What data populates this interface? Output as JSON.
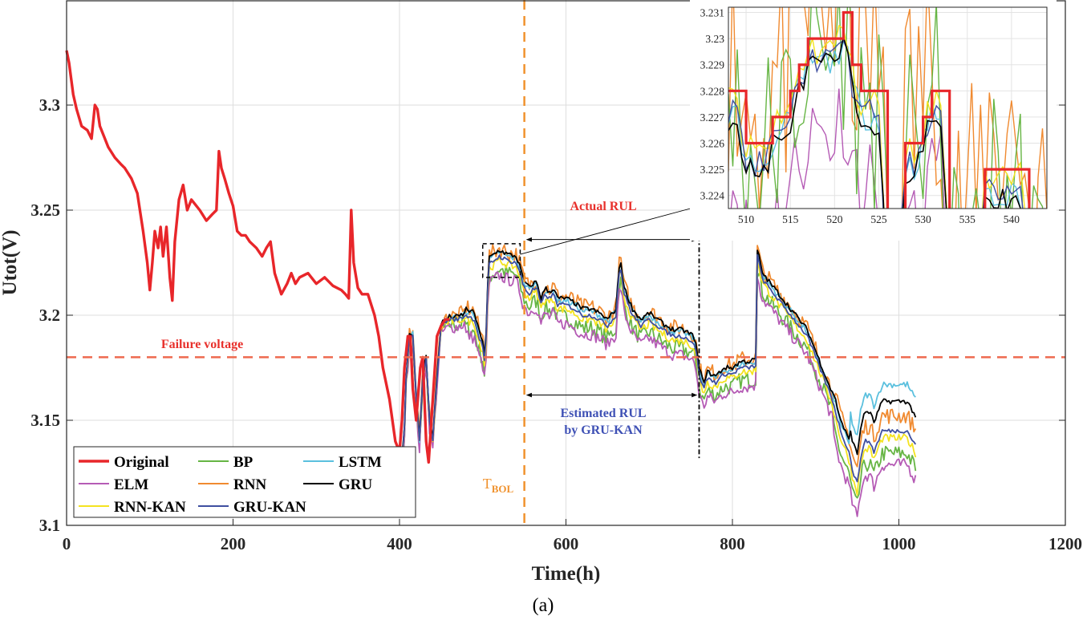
{
  "chart_data": {
    "type": "line",
    "title": "",
    "xlabel": "Time(h)",
    "ylabel": "Utot(V)",
    "xlim": [
      0,
      1200
    ],
    "ylim": [
      3.1,
      3.35
    ],
    "xticks": [
      "0",
      "200",
      "400",
      "600",
      "800",
      "1000",
      "1200"
    ],
    "yticks": [
      "3.1",
      "3.15",
      "3.2",
      "3.25",
      "3.3"
    ],
    "grid": true,
    "legend_position": "bottom-left",
    "failure_voltage": 3.18,
    "failure_label": "Failure voltage",
    "t_bol": 550,
    "t_bol_label": "T",
    "t_bol_sub": "BOL",
    "eol": 760,
    "actual_rul_label": "Actual RUL",
    "estimated_rul_label_line1": "Estimated RUL",
    "estimated_rul_label_line2": "by GRU-KAN",
    "zoom_box": {
      "x": [
        500,
        545
      ],
      "y": [
        3.218,
        3.234
      ]
    },
    "original": {
      "name": "Original",
      "color": "#e8262a",
      "x": [
        0,
        3,
        8,
        12,
        18,
        25,
        30,
        34,
        37,
        40,
        45,
        50,
        58,
        65,
        70,
        78,
        85,
        92,
        97,
        100,
        103,
        106,
        110,
        113,
        116,
        120,
        124,
        127,
        130,
        135,
        140,
        145,
        150,
        160,
        168,
        175,
        180,
        183,
        186,
        190,
        195,
        200,
        205,
        210,
        215,
        220,
        228,
        235,
        240,
        245,
        250,
        258,
        265,
        270,
        275,
        280,
        290,
        300,
        310,
        320,
        330,
        335,
        339,
        342,
        345,
        350,
        355,
        362,
        370,
        375,
        380,
        388,
        395,
        400,
        403,
        406,
        410,
        413,
        416,
        420,
        425,
        428,
        432,
        435,
        440,
        445,
        450,
        455,
        460
      ],
      "y": [
        3.326,
        3.32,
        3.305,
        3.298,
        3.29,
        3.288,
        3.284,
        3.3,
        3.298,
        3.29,
        3.285,
        3.28,
        3.275,
        3.272,
        3.27,
        3.265,
        3.258,
        3.24,
        3.225,
        3.212,
        3.225,
        3.24,
        3.232,
        3.242,
        3.228,
        3.242,
        3.218,
        3.207,
        3.235,
        3.255,
        3.262,
        3.25,
        3.255,
        3.25,
        3.245,
        3.248,
        3.25,
        3.278,
        3.27,
        3.265,
        3.258,
        3.252,
        3.24,
        3.238,
        3.238,
        3.235,
        3.232,
        3.228,
        3.232,
        3.235,
        3.22,
        3.21,
        3.215,
        3.22,
        3.215,
        3.218,
        3.22,
        3.215,
        3.218,
        3.214,
        3.212,
        3.21,
        3.208,
        3.25,
        3.225,
        3.213,
        3.21,
        3.21,
        3.2,
        3.19,
        3.175,
        3.16,
        3.14,
        3.135,
        3.15,
        3.175,
        3.19,
        3.19,
        3.165,
        3.15,
        3.175,
        3.18,
        3.14,
        3.13,
        3.16,
        3.19,
        3.195,
        3.198,
        3.198
      ]
    },
    "series": [
      {
        "name": "BP",
        "color": "#66b544",
        "offset": -0.006,
        "noise": 0.004
      },
      {
        "name": "ELM",
        "color": "#b55bb5",
        "offset": -0.009,
        "noise": 0.003
      },
      {
        "name": "RNN",
        "color": "#f08a30",
        "offset": 0.004,
        "noise": 0.004
      },
      {
        "name": "LSTM",
        "color": "#5bc0de",
        "offset": 0.002,
        "noise": 0.0015
      },
      {
        "name": "GRU",
        "color": "#000000",
        "offset": 0.003,
        "noise": 0.0012
      },
      {
        "name": "RNN-KAN",
        "color": "#f4e320",
        "offset": -0.002,
        "noise": 0.002
      },
      {
        "name": "GRU-KAN",
        "color": "#3f4fa0",
        "offset": 0.0,
        "noise": 0.001
      }
    ],
    "prediction_x": [
      400,
      405,
      408,
      412,
      416,
      420,
      424,
      428,
      432,
      436,
      440,
      445,
      450,
      460,
      470,
      480,
      490,
      495,
      500,
      503,
      505,
      507,
      510,
      520,
      530,
      540,
      545,
      548,
      552,
      556,
      560,
      565,
      570,
      575,
      580,
      585,
      590,
      600,
      610,
      620,
      630,
      640,
      650,
      660,
      665,
      670,
      675,
      680,
      690,
      700,
      710,
      720,
      730,
      740,
      750,
      755,
      760,
      765,
      770,
      780,
      790,
      800,
      810,
      820,
      828,
      830,
      832,
      835,
      840,
      850,
      860,
      870,
      880,
      890,
      900,
      910,
      920,
      930,
      935,
      940,
      945,
      950,
      955,
      960,
      965,
      970,
      980,
      990,
      1000,
      1010,
      1020
    ],
    "prediction_y": [
      3.135,
      3.135,
      3.17,
      3.19,
      3.19,
      3.16,
      3.14,
      3.17,
      3.18,
      3.15,
      3.14,
      3.17,
      3.195,
      3.198,
      3.198,
      3.2,
      3.198,
      3.19,
      3.185,
      3.175,
      3.2,
      3.224,
      3.225,
      3.228,
      3.226,
      3.225,
      3.22,
      3.215,
      3.212,
      3.21,
      3.212,
      3.213,
      3.205,
      3.21,
      3.208,
      3.21,
      3.205,
      3.205,
      3.203,
      3.2,
      3.2,
      3.198,
      3.195,
      3.2,
      3.225,
      3.21,
      3.205,
      3.2,
      3.195,
      3.198,
      3.195,
      3.192,
      3.19,
      3.19,
      3.188,
      3.186,
      3.172,
      3.165,
      3.17,
      3.168,
      3.172,
      3.172,
      3.175,
      3.175,
      3.176,
      3.228,
      3.225,
      3.218,
      3.215,
      3.21,
      3.205,
      3.2,
      3.195,
      3.19,
      3.18,
      3.17,
      3.16,
      3.145,
      3.14,
      3.135,
      3.125,
      3.12,
      3.135,
      3.14,
      3.14,
      3.135,
      3.145,
      3.145,
      3.145,
      3.145,
      3.138
    ],
    "inset": {
      "xlim": [
        508,
        544
      ],
      "ylim": [
        3.2235,
        3.2312
      ],
      "xticks": [
        "510",
        "515",
        "520",
        "525",
        "530",
        "535",
        "540"
      ],
      "yticks": [
        "3.224",
        "3.225",
        "3.226",
        "3.227",
        "3.228",
        "3.229",
        "3.23",
        "3.231"
      ],
      "original_x": [
        508,
        509,
        510,
        511,
        512,
        513,
        514,
        515,
        516,
        517,
        518,
        519,
        520,
        521,
        522,
        523,
        524,
        525,
        526,
        527,
        528,
        529,
        530,
        531,
        532,
        533,
        534,
        535,
        536,
        537,
        538,
        539,
        540,
        541,
        542
      ],
      "original_y": [
        3.228,
        3.228,
        3.226,
        3.226,
        3.226,
        3.227,
        3.227,
        3.228,
        3.229,
        3.23,
        3.23,
        3.23,
        3.23,
        3.231,
        3.229,
        3.228,
        3.228,
        3.228,
        3.221,
        3.221,
        3.226,
        3.226,
        3.227,
        3.228,
        3.228,
        3.222,
        3.222,
        3.222,
        3.222,
        3.225,
        3.225,
        3.225,
        3.225,
        3.225,
        3.222
      ]
    },
    "caption": "(a)"
  }
}
